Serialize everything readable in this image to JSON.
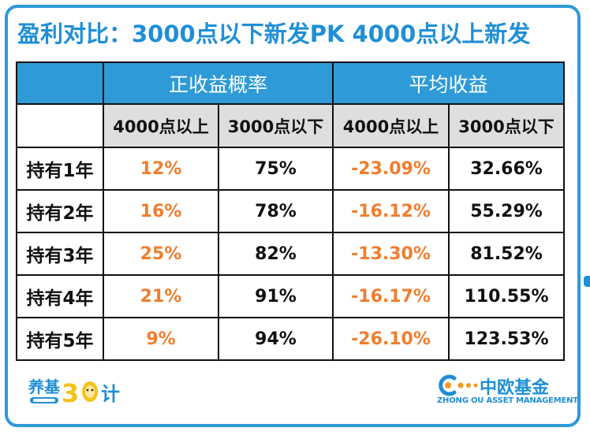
{
  "title": "盈利对比：3000点以下新发PK 4000点以上新发",
  "table": {
    "group_headers": [
      "正收益概率",
      "平均收益"
    ],
    "sub_headers": [
      "4000点以上",
      "3000点以下",
      "4000点以上",
      "3000点以下"
    ],
    "rows": [
      {
        "label": "持有1年",
        "values": [
          "12%",
          "75%",
          "-23.09%",
          "32.66%"
        ]
      },
      {
        "label": "持有2年",
        "values": [
          "16%",
          "78%",
          "-16.12%",
          "55.29%"
        ]
      },
      {
        "label": "持有3年",
        "values": [
          "25%",
          "82%",
          "-13.30%",
          "81.52%"
        ]
      },
      {
        "label": "持有4年",
        "values": [
          "21%",
          "91%",
          "-16.17%",
          "110.55%"
        ]
      },
      {
        "label": "持有5年",
        "values": [
          "9%",
          "94%",
          "-26.10%",
          "123.53%"
        ]
      }
    ]
  },
  "footer": {
    "left_logo_text": "养基30计",
    "brand_name": "中欧基金",
    "brand_en": "ZHONG OU ASSET MANAGEMENT"
  },
  "colors": {
    "accent_blue": "#2e9ad8",
    "highlight_orange": "#f07e2e",
    "subheader_gray": "#dedede"
  }
}
